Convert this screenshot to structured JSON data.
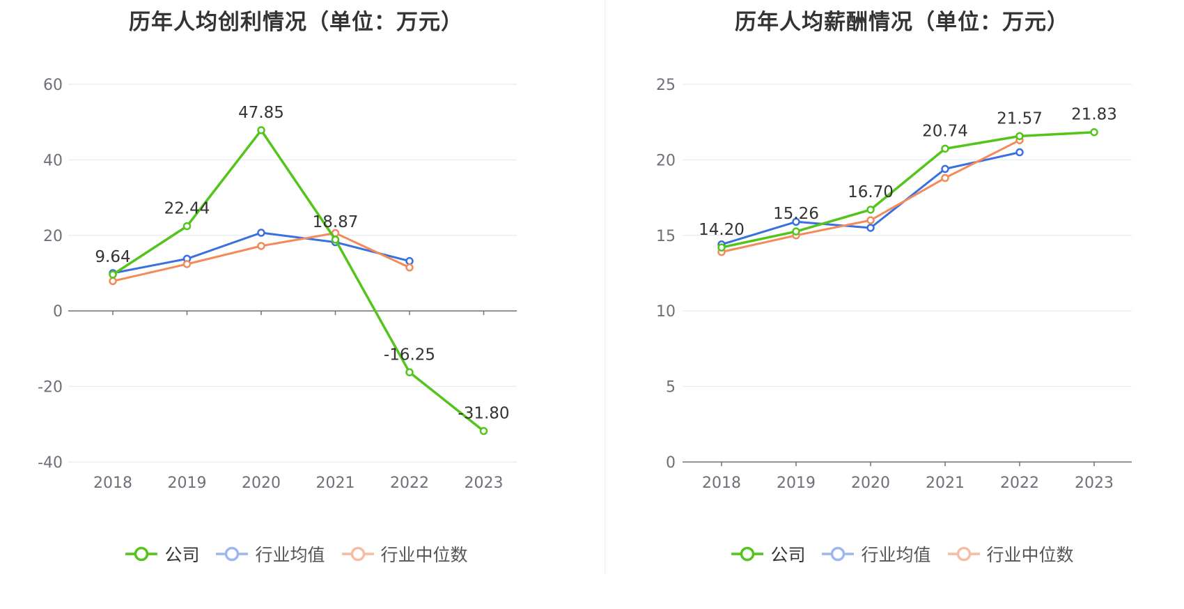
{
  "chart_data": [
    {
      "type": "line",
      "title": "历年人均创利情况（单位：万元）",
      "categories": [
        "2018",
        "2019",
        "2020",
        "2021",
        "2022",
        "2023"
      ],
      "ylim": [
        -40,
        60
      ],
      "yticks": [
        60,
        40,
        20,
        0,
        -20,
        -40
      ],
      "ytick_labels": [
        "60",
        "40",
        "20",
        "0",
        "-20",
        "-40"
      ],
      "grid": true,
      "legend_position": "bottom-center",
      "series": [
        {
          "name": "公司",
          "color": "#52c41a",
          "values": [
            9.64,
            22.44,
            47.85,
            18.87,
            -16.25,
            -31.8
          ],
          "labels": [
            "9.64",
            "22.44",
            "47.85",
            "18.87",
            "-16.25",
            "-31.80"
          ]
        },
        {
          "name": "行业均值",
          "color": "#3a6fe0",
          "legend_color": "#9bb6f1",
          "values": [
            10.0,
            13.8,
            20.7,
            18.2,
            13.2,
            null
          ]
        },
        {
          "name": "行业中位数",
          "color": "#f28a5a",
          "legend_color": "#f7bca1",
          "values": [
            7.9,
            12.4,
            17.2,
            20.6,
            11.5,
            null
          ]
        }
      ]
    },
    {
      "type": "line",
      "title": "历年人均薪酬情况（单位：万元）",
      "categories": [
        "2018",
        "2019",
        "2020",
        "2021",
        "2022",
        "2023"
      ],
      "ylim": [
        0,
        25
      ],
      "yticks": [
        25,
        20,
        15,
        10,
        5,
        0
      ],
      "ytick_labels": [
        "25",
        "20",
        "15",
        "10",
        "5",
        "0"
      ],
      "grid": true,
      "legend_position": "bottom-center",
      "series": [
        {
          "name": "公司",
          "color": "#52c41a",
          "values": [
            14.2,
            15.26,
            16.7,
            20.74,
            21.57,
            21.83
          ],
          "labels": [
            "14.20",
            "15.26",
            "16.70",
            "20.74",
            "21.57",
            "21.83"
          ]
        },
        {
          "name": "行业均值",
          "color": "#3a6fe0",
          "legend_color": "#9bb6f1",
          "values": [
            14.4,
            15.9,
            15.5,
            19.4,
            20.5,
            null
          ]
        },
        {
          "name": "行业中位数",
          "color": "#f28a5a",
          "legend_color": "#f7bca1",
          "values": [
            13.9,
            15.0,
            16.0,
            18.8,
            21.3,
            null
          ]
        }
      ]
    }
  ]
}
